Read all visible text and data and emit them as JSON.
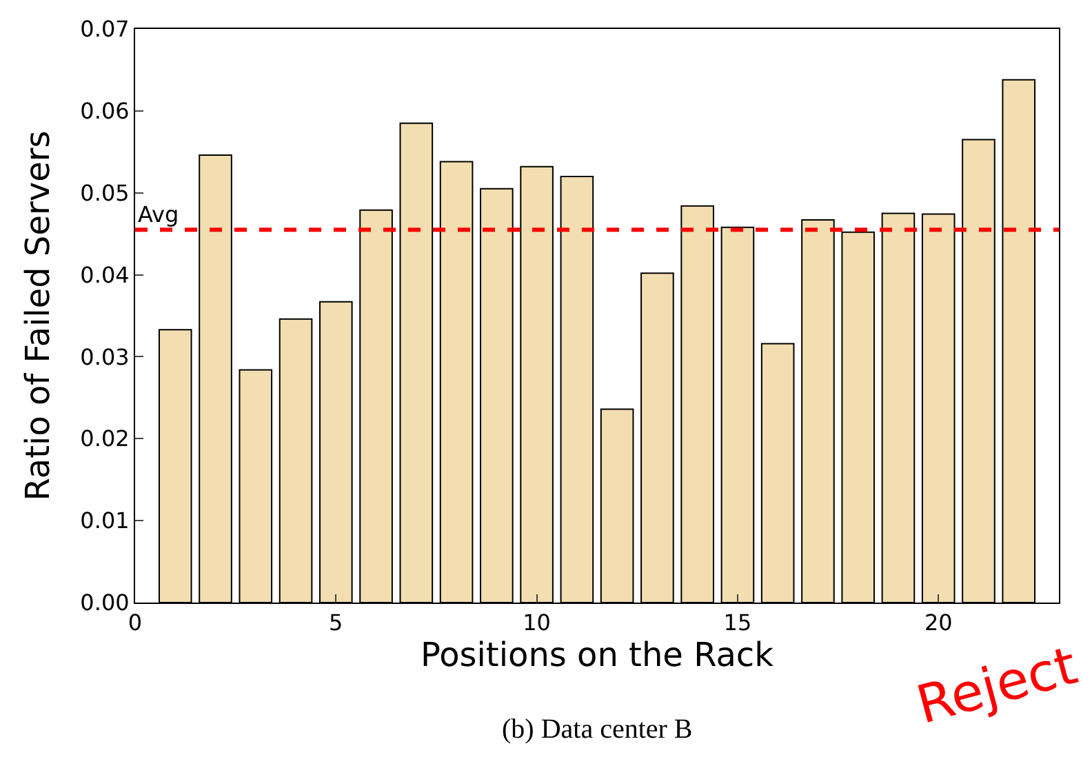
{
  "chart_data": {
    "type": "bar",
    "xlabel": "Positions on the Rack",
    "ylabel": "Ratio of Failed Servers",
    "x": [
      1,
      2,
      3,
      4,
      5,
      6,
      7,
      8,
      9,
      10,
      11,
      12,
      13,
      14,
      15,
      16,
      17,
      18,
      19,
      20,
      21,
      22
    ],
    "values": [
      0.0333,
      0.0546,
      0.0284,
      0.0346,
      0.0367,
      0.0479,
      0.0585,
      0.0538,
      0.0505,
      0.0532,
      0.052,
      0.0236,
      0.0402,
      0.0484,
      0.0458,
      0.0316,
      0.0467,
      0.0452,
      0.0475,
      0.0474,
      0.0565,
      0.0638
    ],
    "color": "#f2deb0",
    "xlim": [
      0,
      23
    ],
    "xticks": [
      0,
      5,
      10,
      15,
      20
    ],
    "ylim": [
      0,
      0.07
    ],
    "yticks": [
      {
        "value": 0,
        "label": "0.00"
      },
      {
        "value": 0.01,
        "label": "0.01"
      },
      {
        "value": 0.02,
        "label": "0.02"
      },
      {
        "value": 0.03,
        "label": "0.03"
      },
      {
        "value": 0.04,
        "label": "0.04"
      },
      {
        "value": 0.05,
        "label": "0.05"
      },
      {
        "value": 0.06,
        "label": "0.06"
      },
      {
        "value": 0.07,
        "label": "0.07"
      }
    ],
    "ref_lines": [
      {
        "axis": "y",
        "value": 0.0455,
        "label": "Avg",
        "color": "#ff0000",
        "line_style": "dashed"
      }
    ],
    "annotations": [
      "(b) Data center B",
      "Reject"
    ]
  }
}
